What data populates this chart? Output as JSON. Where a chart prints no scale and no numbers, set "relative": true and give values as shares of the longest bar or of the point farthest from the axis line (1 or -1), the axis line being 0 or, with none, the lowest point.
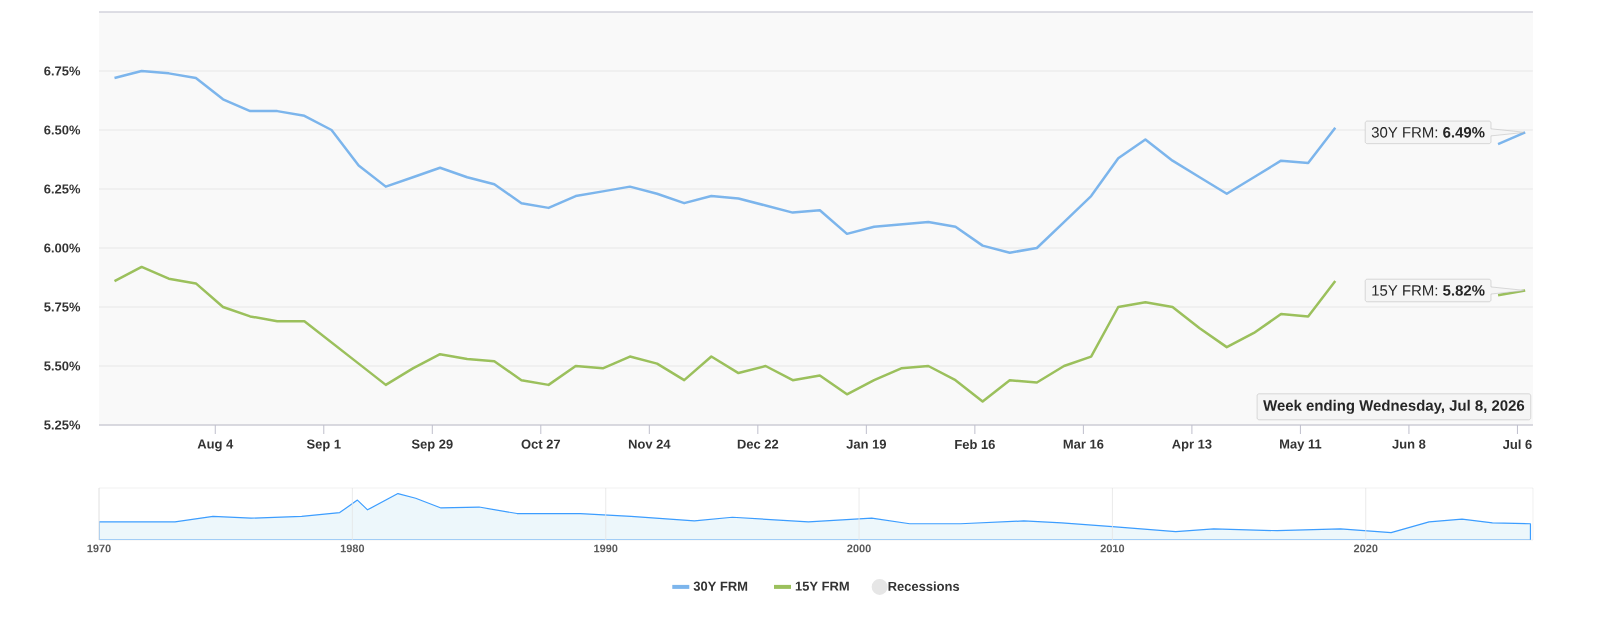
{
  "chart_data": [
    {
      "type": "line",
      "x": [
        "2025-07-09",
        "2025-07-16",
        "2025-07-23",
        "2025-07-30",
        "2025-08-06",
        "2025-08-13",
        "2025-08-20",
        "2025-08-27",
        "2025-09-03",
        "2025-09-10",
        "2025-09-17",
        "2025-09-24",
        "2025-10-01",
        "2025-10-08",
        "2025-10-15",
        "2025-10-22",
        "2025-10-29",
        "2025-11-05",
        "2025-11-12",
        "2025-11-19",
        "2025-11-26",
        "2025-12-03",
        "2025-12-10",
        "2025-12-17",
        "2025-12-24",
        "2025-12-31",
        "2026-01-07",
        "2026-01-14",
        "2026-01-21",
        "2026-01-28",
        "2026-02-04",
        "2026-02-11",
        "2026-02-18",
        "2026-02-25",
        "2026-03-04",
        "2026-03-11",
        "2026-03-18",
        "2026-03-25",
        "2026-04-01",
        "2026-04-08",
        "2026-04-15",
        "2026-04-22",
        "2026-04-29",
        "2026-05-06",
        "2026-05-13",
        "2026-05-20",
        "2026-05-27",
        "2026-06-03",
        "2026-06-10",
        "2026-06-17",
        "2026-06-24",
        "2026-07-01",
        "2026-07-08"
      ],
      "series": [
        {
          "name": "30Y FRM",
          "color": "#7cb5ec",
          "values": [
            6.72,
            6.75,
            6.74,
            6.72,
            6.63,
            6.58,
            6.58,
            6.56,
            6.5,
            6.35,
            6.26,
            6.3,
            6.34,
            6.3,
            6.27,
            6.19,
            6.17,
            6.22,
            6.24,
            6.26,
            6.23,
            6.19,
            6.22,
            6.21,
            6.18,
            6.15,
            6.16,
            6.06,
            6.09,
            6.1,
            6.11,
            6.09,
            6.01,
            5.98,
            6.0,
            6.11,
            6.22,
            6.38,
            6.46,
            6.37,
            6.3,
            6.23,
            6.3,
            6.37,
            6.36,
            6.51,
            null,
            null,
            null,
            null,
            null,
            6.44,
            6.49
          ]
        },
        {
          "name": "15Y FRM",
          "color": "#9bc05c",
          "values": [
            5.86,
            5.92,
            5.87,
            5.85,
            5.75,
            5.71,
            5.69,
            5.69,
            5.6,
            5.51,
            5.42,
            5.49,
            5.55,
            5.53,
            5.52,
            5.44,
            5.42,
            5.5,
            5.49,
            5.54,
            5.51,
            5.44,
            5.54,
            5.47,
            5.5,
            5.44,
            5.46,
            5.38,
            5.44,
            5.49,
            5.5,
            5.44,
            5.35,
            5.44,
            5.43,
            5.5,
            5.54,
            5.75,
            5.77,
            5.75,
            5.66,
            5.58,
            5.64,
            5.72,
            5.71,
            5.86,
            null,
            null,
            null,
            null,
            null,
            5.8,
            5.82
          ]
        },
        {
          "name": "Recessions",
          "type": "area",
          "color": "#e6e6e6",
          "values": [
            null,
            null,
            null,
            null,
            null,
            null,
            null,
            null,
            null,
            null,
            null,
            null,
            null,
            null,
            null,
            null,
            null,
            null,
            null,
            null,
            null,
            null,
            null,
            null,
            null,
            null,
            null,
            null,
            null,
            null,
            null,
            null,
            null,
            null,
            null,
            null,
            null,
            null,
            null,
            null,
            null,
            null,
            null,
            null,
            null,
            null,
            null,
            null,
            null,
            null,
            null,
            null,
            null
          ]
        }
      ],
      "xlim": [
        "2025-07-05",
        "2026-07-10"
      ],
      "xticks": [
        {
          "value": "2025-08-04",
          "label": "Aug 4"
        },
        {
          "value": "2025-09-01",
          "label": "Sep 1"
        },
        {
          "value": "2025-09-29",
          "label": "Sep 29"
        },
        {
          "value": "2025-10-27",
          "label": "Oct 27"
        },
        {
          "value": "2025-11-24",
          "label": "Nov 24"
        },
        {
          "value": "2025-12-22",
          "label": "Dec 22"
        },
        {
          "value": "2026-01-19",
          "label": "Jan 19"
        },
        {
          "value": "2026-02-16",
          "label": "Feb 16"
        },
        {
          "value": "2026-03-16",
          "label": "Mar 16"
        },
        {
          "value": "2026-04-13",
          "label": "Apr 13"
        },
        {
          "value": "2026-05-11",
          "label": "May 11"
        },
        {
          "value": "2026-06-08",
          "label": "Jun 8"
        },
        {
          "value": "2026-07-06",
          "label": "Jul 6"
        }
      ],
      "ylim": [
        5.25,
        7.0
      ],
      "yticks": [
        {
          "value": 5.25,
          "label": "5.25%"
        },
        {
          "value": 5.5,
          "label": "5.50%"
        },
        {
          "value": 5.75,
          "label": "5.75%"
        },
        {
          "value": 6.0,
          "label": "6.00%"
        },
        {
          "value": 6.25,
          "label": "6.25%"
        },
        {
          "value": 6.5,
          "label": "6.50%"
        },
        {
          "value": 6.75,
          "label": "6.75%"
        }
      ],
      "grid": "y",
      "legend": "bottom",
      "annotations": [
        {
          "text": "30Y FRM: **6.49%**",
          "x": "2026-07-08",
          "y": 6.49
        },
        {
          "text": "15Y FRM: **5.82%**",
          "x": "2026-07-08",
          "y": 5.82
        },
        "Week ending Wednesday, Jul 8, 2026"
      ]
    },
    {
      "type": "area",
      "relative": true,
      "color": "#edf7fb",
      "x": [
        1970,
        1973,
        1974.5,
        1976,
        1978,
        1979.5,
        1980.2,
        1980.6,
        1981.8,
        1982.5,
        1983.5,
        1985,
        1986.5,
        1987.5,
        1989,
        1991,
        1993.5,
        1995,
        1998,
        2000.5,
        2002,
        2004,
        2006.5,
        2008,
        2010,
        2012.5,
        2014,
        2016.5,
        2019,
        2021,
        2022.5,
        2023.8,
        2025,
        2026.5
      ],
      "values": [
        0.39,
        0.39,
        0.51,
        0.47,
        0.51,
        0.59,
        0.86,
        0.65,
        1.0,
        0.9,
        0.69,
        0.71,
        0.57,
        0.57,
        0.57,
        0.51,
        0.41,
        0.49,
        0.39,
        0.47,
        0.35,
        0.35,
        0.41,
        0.37,
        0.29,
        0.18,
        0.24,
        0.2,
        0.24,
        0.16,
        0.39,
        0.45,
        0.37,
        0.35
      ],
      "xlim": [
        1970,
        2026.6
      ],
      "xticks": [
        1970,
        1980,
        1990,
        2000,
        2010,
        2020
      ],
      "grid": "x"
    }
  ]
}
